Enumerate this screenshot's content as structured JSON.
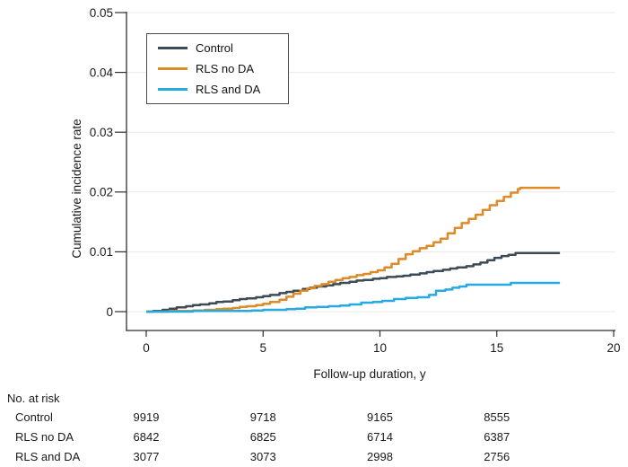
{
  "chart_data": {
    "type": "line",
    "curve_style": "step-after",
    "title": "",
    "xlabel": "Follow-up duration, y",
    "ylabel": "Cumulative incidence rate",
    "xlim": [
      0,
      20
    ],
    "ylim": [
      0,
      0.05
    ],
    "x_ticks": [
      0,
      5,
      10,
      15,
      20
    ],
    "y_ticks": [
      0,
      0.01,
      0.02,
      0.03,
      0.04,
      0.05
    ],
    "y_tick_labels": [
      "0",
      "0.01",
      "0.02",
      "0.03",
      "0.04",
      "0.05"
    ],
    "grid": "horizontal",
    "legend_position": "top-left-inside",
    "axis_color": "#2e2e2e",
    "grid_color": "#eaeaea",
    "series": [
      {
        "name": "Control",
        "color": "#3c4b55",
        "points": [
          [
            0,
            0
          ],
          [
            0.3,
            0.0001
          ],
          [
            0.7,
            0.0003
          ],
          [
            1,
            0.0005
          ],
          [
            1.3,
            0.0007
          ],
          [
            1.7,
            0.0009
          ],
          [
            2,
            0.0011
          ],
          [
            2.3,
            0.0012
          ],
          [
            2.7,
            0.0014
          ],
          [
            3,
            0.0016
          ],
          [
            3.3,
            0.0017
          ],
          [
            3.7,
            0.0019
          ],
          [
            4,
            0.0021
          ],
          [
            4.3,
            0.0022
          ],
          [
            4.7,
            0.0024
          ],
          [
            5,
            0.0026
          ],
          [
            5.3,
            0.0028
          ],
          [
            5.7,
            0.0031
          ],
          [
            6,
            0.0033
          ],
          [
            6.3,
            0.0035
          ],
          [
            6.7,
            0.0038
          ],
          [
            7,
            0.004
          ],
          [
            7.3,
            0.0042
          ],
          [
            7.7,
            0.0044
          ],
          [
            8,
            0.0046
          ],
          [
            8.3,
            0.0048
          ],
          [
            8.7,
            0.005
          ],
          [
            9,
            0.0052
          ],
          [
            9.3,
            0.0053
          ],
          [
            9.7,
            0.0055
          ],
          [
            10,
            0.0056
          ],
          [
            10.3,
            0.0058
          ],
          [
            10.7,
            0.0059
          ],
          [
            11,
            0.006
          ],
          [
            11.3,
            0.0062
          ],
          [
            11.7,
            0.0064
          ],
          [
            12,
            0.0066
          ],
          [
            12.3,
            0.0068
          ],
          [
            12.7,
            0.007
          ],
          [
            13,
            0.0072
          ],
          [
            13.3,
            0.0074
          ],
          [
            13.7,
            0.0076
          ],
          [
            14,
            0.0079
          ],
          [
            14.3,
            0.0082
          ],
          [
            14.6,
            0.0086
          ],
          [
            14.9,
            0.009
          ],
          [
            15.2,
            0.0093
          ],
          [
            15.5,
            0.0095
          ],
          [
            15.8,
            0.0098
          ],
          [
            17.7,
            0.0098
          ]
        ]
      },
      {
        "name": "RLS no DA",
        "color": "#dd8a28",
        "points": [
          [
            0,
            0
          ],
          [
            1,
            0.0001
          ],
          [
            2,
            0.0002
          ],
          [
            2.5,
            0.0003
          ],
          [
            3,
            0.0004
          ],
          [
            3.3,
            0.0005
          ],
          [
            3.7,
            0.0006
          ],
          [
            4,
            0.0008
          ],
          [
            4.3,
            0.0009
          ],
          [
            4.7,
            0.0011
          ],
          [
            5,
            0.0013
          ],
          [
            5.3,
            0.0016
          ],
          [
            5.7,
            0.002
          ],
          [
            6,
            0.0025
          ],
          [
            6.3,
            0.003
          ],
          [
            6.6,
            0.0035
          ],
          [
            6.9,
            0.0039
          ],
          [
            7.2,
            0.0043
          ],
          [
            7.5,
            0.0046
          ],
          [
            7.8,
            0.005
          ],
          [
            8.1,
            0.0053
          ],
          [
            8.4,
            0.0056
          ],
          [
            8.7,
            0.0058
          ],
          [
            9,
            0.0061
          ],
          [
            9.3,
            0.0063
          ],
          [
            9.6,
            0.0066
          ],
          [
            9.9,
            0.0069
          ],
          [
            10.2,
            0.0074
          ],
          [
            10.5,
            0.008
          ],
          [
            10.8,
            0.0088
          ],
          [
            11.1,
            0.0096
          ],
          [
            11.4,
            0.0101
          ],
          [
            11.7,
            0.0106
          ],
          [
            12,
            0.011
          ],
          [
            12.3,
            0.0116
          ],
          [
            12.6,
            0.0122
          ],
          [
            12.9,
            0.0131
          ],
          [
            13.2,
            0.014
          ],
          [
            13.5,
            0.0148
          ],
          [
            13.8,
            0.0155
          ],
          [
            14.1,
            0.0162
          ],
          [
            14.4,
            0.017
          ],
          [
            14.7,
            0.0178
          ],
          [
            15,
            0.0185
          ],
          [
            15.3,
            0.0192
          ],
          [
            15.6,
            0.0199
          ],
          [
            15.9,
            0.0205
          ],
          [
            16,
            0.0207
          ],
          [
            17.7,
            0.0207
          ]
        ]
      },
      {
        "name": "RLS and DA",
        "color": "#27aae1",
        "points": [
          [
            0,
            0
          ],
          [
            2,
            0.0001
          ],
          [
            4,
            0.0001
          ],
          [
            4.5,
            0.0002
          ],
          [
            5,
            0.0003
          ],
          [
            6,
            0.0004
          ],
          [
            6.4,
            0.0005
          ],
          [
            6.8,
            0.0007
          ],
          [
            7.3,
            0.0008
          ],
          [
            7.8,
            0.0009
          ],
          [
            8.3,
            0.001
          ],
          [
            8.7,
            0.0012
          ],
          [
            9.2,
            0.0015
          ],
          [
            9.7,
            0.0016
          ],
          [
            10.1,
            0.0018
          ],
          [
            10.6,
            0.0021
          ],
          [
            11.1,
            0.0023
          ],
          [
            11.6,
            0.0024
          ],
          [
            12.1,
            0.0028
          ],
          [
            12.4,
            0.0035
          ],
          [
            12.8,
            0.0037
          ],
          [
            13.1,
            0.004
          ],
          [
            13.4,
            0.0042
          ],
          [
            13.7,
            0.0045
          ],
          [
            15.6,
            0.0048
          ],
          [
            17.7,
            0.0048
          ]
        ]
      }
    ]
  },
  "risk_table": {
    "title": "No. at risk",
    "time_points": [
      0,
      5,
      10,
      15
    ],
    "rows": [
      {
        "label": "Control",
        "values": [
          "9919",
          "9718",
          "9165",
          "8555"
        ]
      },
      {
        "label": "RLS no DA",
        "values": [
          "6842",
          "6825",
          "6714",
          "6387"
        ]
      },
      {
        "label": "RLS and DA",
        "values": [
          "3077",
          "3073",
          "2998",
          "2756"
        ]
      }
    ]
  }
}
